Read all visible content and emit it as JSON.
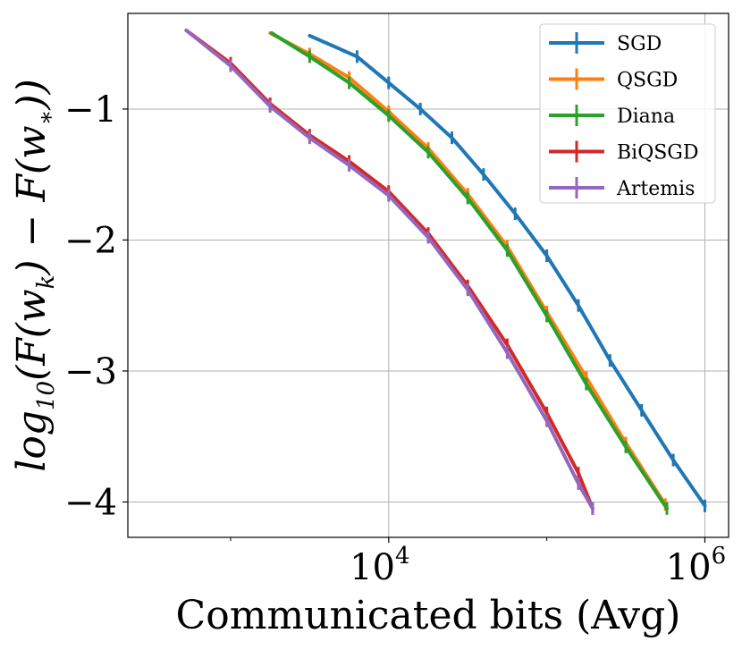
{
  "chart_data": {
    "type": "line",
    "title": "",
    "xlabel": "Communicated bits (Avg)",
    "ylabel": "log10(F(w_k) − F(w_*))",
    "x_scale": "log10",
    "xlim_log10": [
      2.35,
      6.15
    ],
    "ylim": [
      -4.27,
      -0.27
    ],
    "grid": true,
    "legend_position": "top-right",
    "x_ticks": [
      {
        "log10": 4,
        "base": "10",
        "exp": "4"
      },
      {
        "log10": 6,
        "base": "10",
        "exp": "6"
      }
    ],
    "y_ticks": [
      {
        "value": -1,
        "label": "−1"
      },
      {
        "value": -2,
        "label": "−2"
      },
      {
        "value": -3,
        "label": "−3"
      },
      {
        "value": -4,
        "label": "−4"
      }
    ],
    "series": [
      {
        "name": "SGD",
        "color": "#1f77b4",
        "x_log10": [
          3.5,
          3.8,
          4.0,
          4.2,
          4.4,
          4.6,
          4.8,
          5.0,
          5.2,
          5.4,
          5.6,
          5.8,
          6.0
        ],
        "y": [
          -0.44,
          -0.6,
          -0.8,
          -1.0,
          -1.22,
          -1.5,
          -1.8,
          -2.12,
          -2.5,
          -2.92,
          -3.3,
          -3.68,
          -4.03
        ]
      },
      {
        "name": "QSGD",
        "color": "#ff7f0e",
        "x_log10": [
          3.25,
          3.5,
          3.75,
          4.0,
          4.25,
          4.5,
          4.75,
          5.0,
          5.25,
          5.5,
          5.75
        ],
        "y": [
          -0.42,
          -0.58,
          -0.76,
          -1.02,
          -1.3,
          -1.65,
          -2.05,
          -2.55,
          -3.05,
          -3.55,
          -4.02
        ]
      },
      {
        "name": "Diana",
        "color": "#2ca02c",
        "x_log10": [
          3.26,
          3.5,
          3.75,
          4.0,
          4.25,
          4.5,
          4.75,
          5.0,
          5.25,
          5.5,
          5.76
        ],
        "y": [
          -0.42,
          -0.6,
          -0.8,
          -1.05,
          -1.33,
          -1.68,
          -2.08,
          -2.58,
          -3.1,
          -3.58,
          -4.05
        ]
      },
      {
        "name": "BiQSGD",
        "color": "#d62728",
        "x_log10": [
          2.72,
          3.0,
          3.25,
          3.5,
          3.75,
          4.0,
          4.25,
          4.5,
          4.75,
          5.0,
          5.2,
          5.29
        ],
        "y": [
          -0.4,
          -0.65,
          -0.96,
          -1.2,
          -1.4,
          -1.63,
          -1.95,
          -2.35,
          -2.8,
          -3.32,
          -3.78,
          -4.05
        ]
      },
      {
        "name": "Artemis",
        "color": "#9467bd",
        "x_log10": [
          2.72,
          3.0,
          3.25,
          3.5,
          3.75,
          4.0,
          4.25,
          4.5,
          4.75,
          5.0,
          5.2,
          5.29
        ],
        "y": [
          -0.4,
          -0.67,
          -0.98,
          -1.22,
          -1.43,
          -1.66,
          -1.98,
          -2.38,
          -2.86,
          -3.38,
          -3.86,
          -4.05
        ]
      }
    ]
  }
}
